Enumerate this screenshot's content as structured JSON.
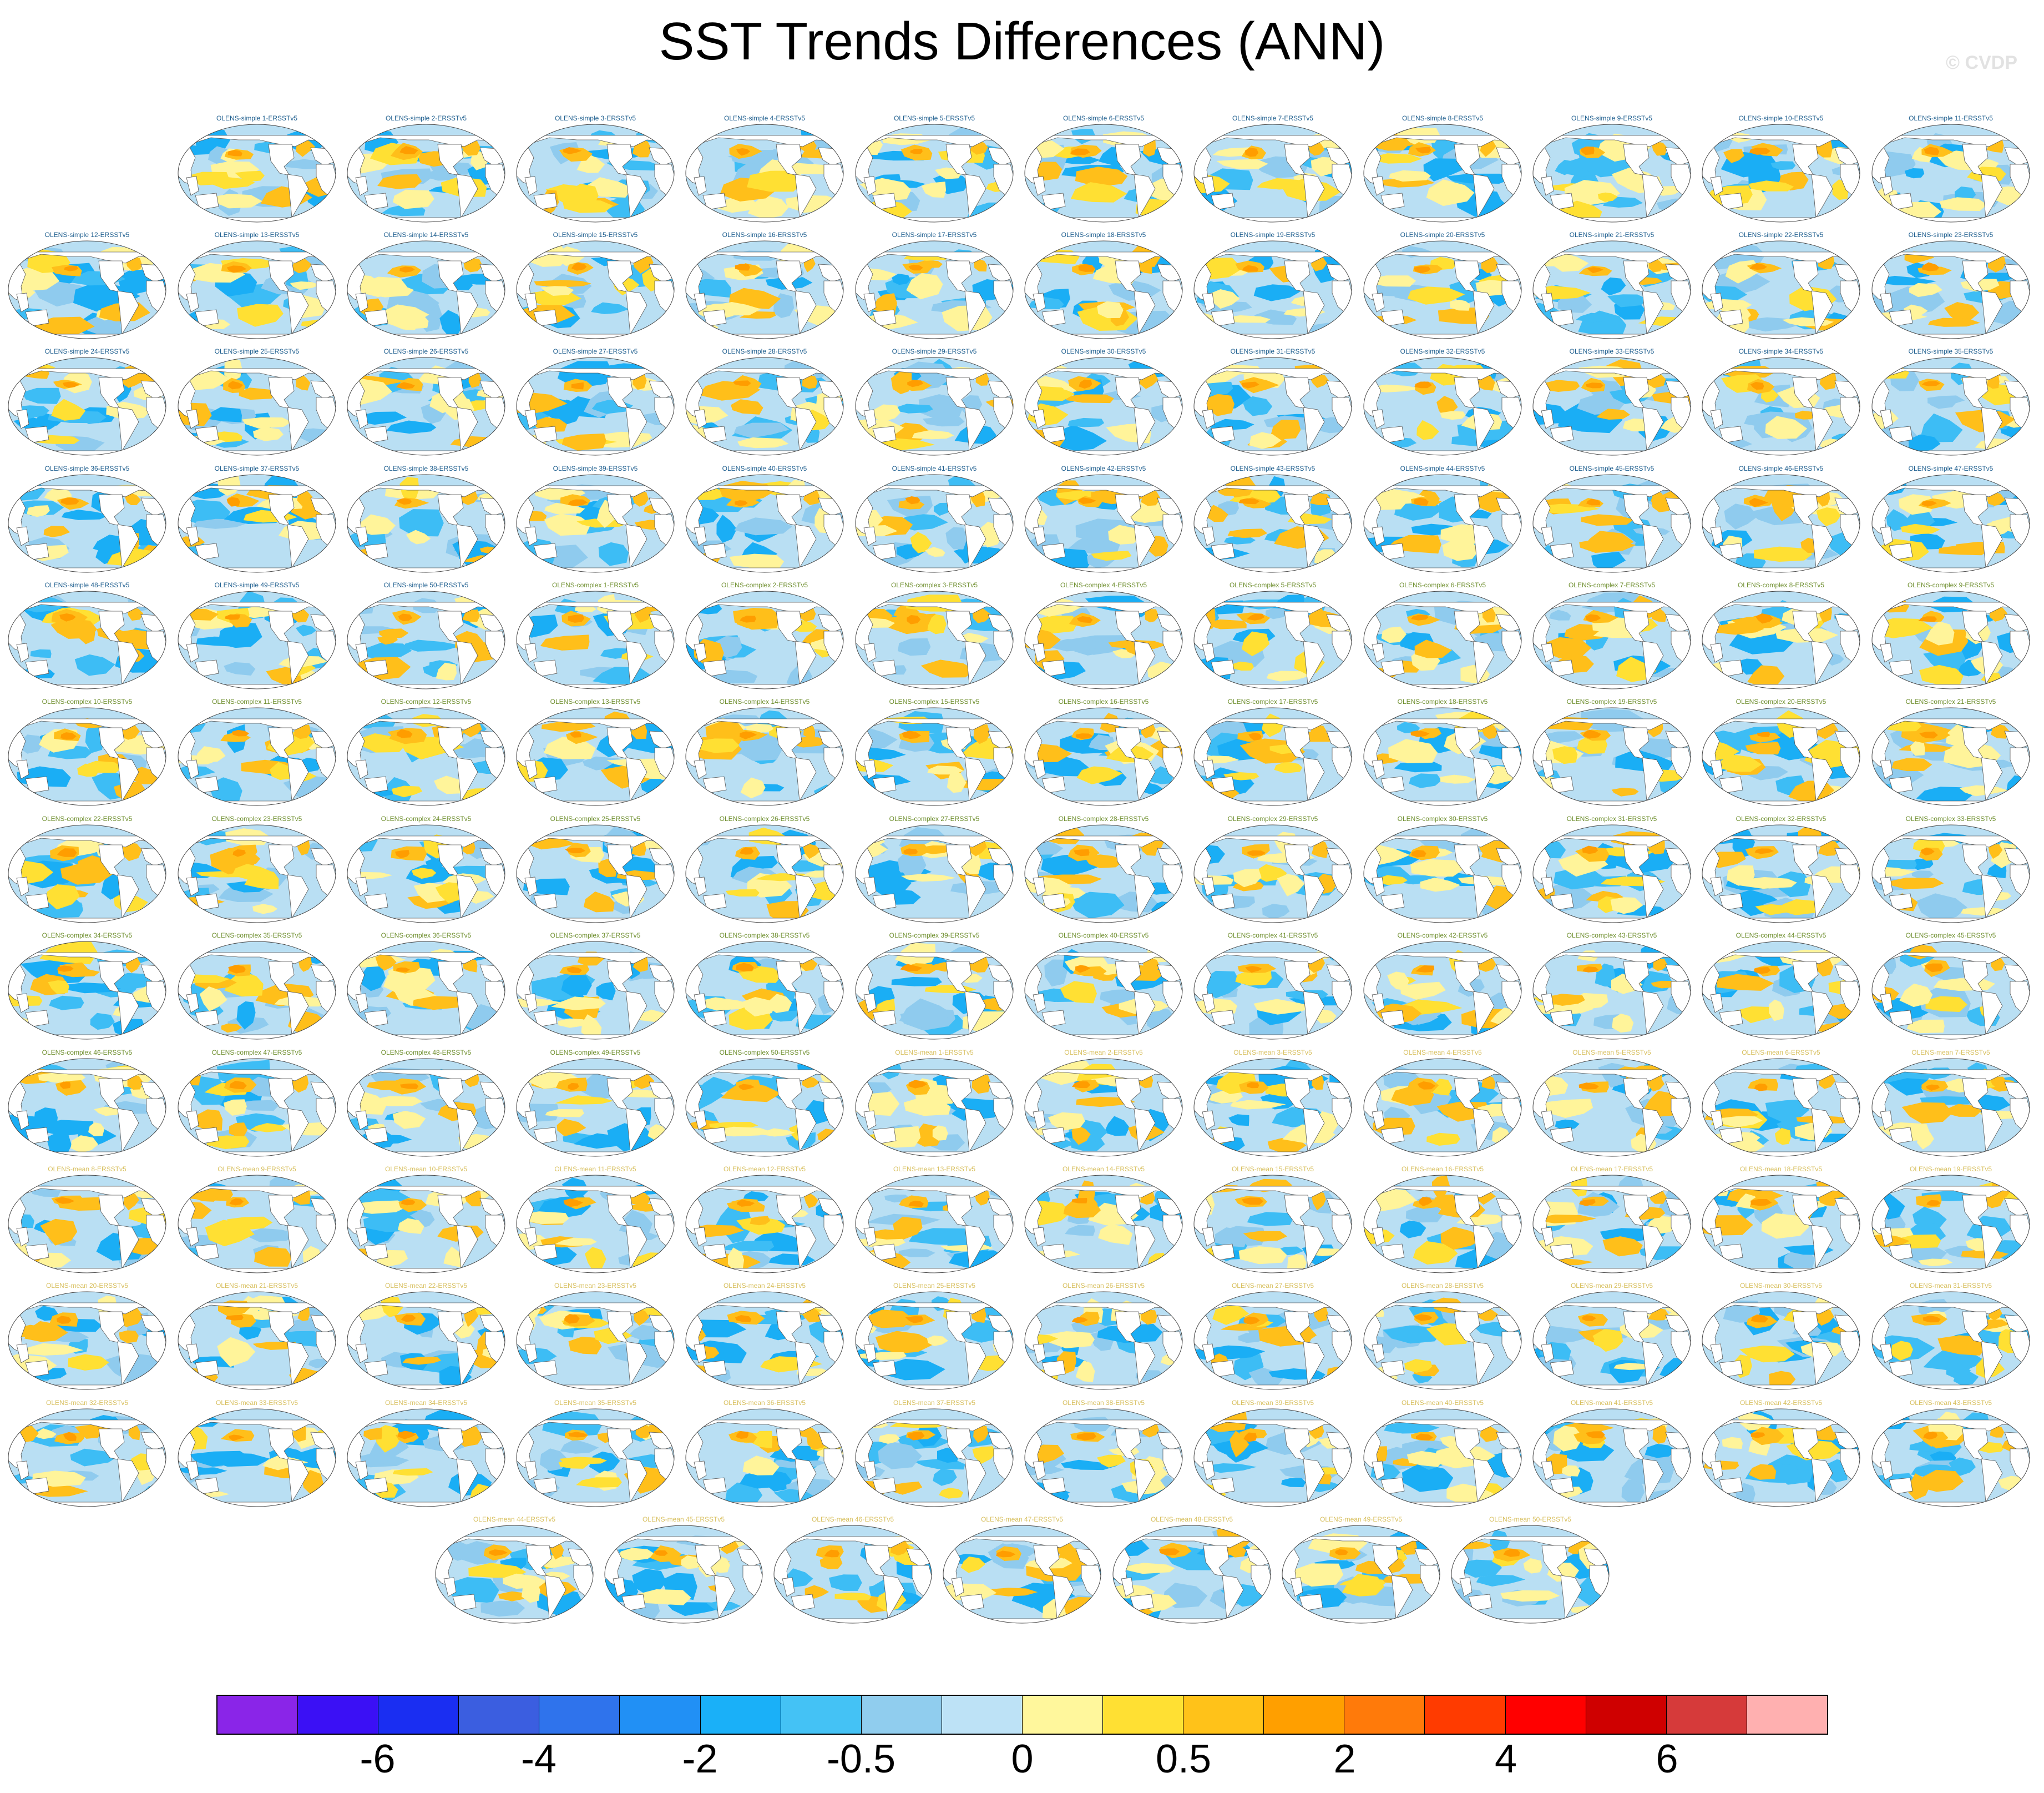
{
  "title": "SST Trends Differences (ANN)",
  "watermark": "© CVDP",
  "title_colors": {
    "simple": "#1f5f8f",
    "complex": "#6f8f2f",
    "mean": "#d8c060"
  },
  "rows": [
    [
      "",
      "OLENS-simple 1-ERSSTv5",
      "OLENS-simple 2-ERSSTv5",
      "OLENS-simple 3-ERSSTv5",
      "OLENS-simple 4-ERSSTv5",
      "OLENS-simple 5-ERSSTv5",
      "OLENS-simple 6-ERSSTv5",
      "OLENS-simple 7-ERSSTv5",
      "OLENS-simple 8-ERSSTv5",
      "OLENS-simple 9-ERSSTv5",
      "OLENS-simple 10-ERSSTv5",
      "OLENS-simple 11-ERSSTv5"
    ],
    [
      "OLENS-simple 12-ERSSTv5",
      "OLENS-simple 13-ERSSTv5",
      "OLENS-simple 14-ERSSTv5",
      "OLENS-simple 15-ERSSTv5",
      "OLENS-simple 16-ERSSTv5",
      "OLENS-simple 17-ERSSTv5",
      "OLENS-simple 18-ERSSTv5",
      "OLENS-simple 19-ERSSTv5",
      "OLENS-simple 20-ERSSTv5",
      "OLENS-simple 21-ERSSTv5",
      "OLENS-simple 22-ERSSTv5",
      "OLENS-simple 23-ERSSTv5"
    ],
    [
      "OLENS-simple 24-ERSSTv5",
      "OLENS-simple 25-ERSSTv5",
      "OLENS-simple 26-ERSSTv5",
      "OLENS-simple 27-ERSSTv5",
      "OLENS-simple 28-ERSSTv5",
      "OLENS-simple 29-ERSSTv5",
      "OLENS-simple 30-ERSSTv5",
      "OLENS-simple 31-ERSSTv5",
      "OLENS-simple 32-ERSSTv5",
      "OLENS-simple 33-ERSSTv5",
      "OLENS-simple 34-ERSSTv5",
      "OLENS-simple 35-ERSSTv5"
    ],
    [
      "OLENS-simple 36-ERSSTv5",
      "OLENS-simple 37-ERSSTv5",
      "OLENS-simple 38-ERSSTv5",
      "OLENS-simple 39-ERSSTv5",
      "OLENS-simple 40-ERSSTv5",
      "OLENS-simple 41-ERSSTv5",
      "OLENS-simple 42-ERSSTv5",
      "OLENS-simple 43-ERSSTv5",
      "OLENS-simple 44-ERSSTv5",
      "OLENS-simple 45-ERSSTv5",
      "OLENS-simple 46-ERSSTv5",
      "OLENS-simple 47-ERSSTv5"
    ],
    [
      "OLENS-simple 48-ERSSTv5",
      "OLENS-simple 49-ERSSTv5",
      "OLENS-simple 50-ERSSTv5",
      "OLENS-complex 1-ERSSTv5",
      "OLENS-complex 2-ERSSTv5",
      "OLENS-complex 3-ERSSTv5",
      "OLENS-complex 4-ERSSTv5",
      "OLENS-complex 5-ERSSTv5",
      "OLENS-complex 6-ERSSTv5",
      "OLENS-complex 7-ERSSTv5",
      "OLENS-complex 8-ERSSTv5",
      "OLENS-complex 9-ERSSTv5"
    ],
    [
      "OLENS-complex 10-ERSSTv5",
      "OLENS-complex 11-ERSSTv5",
      "OLENS-complex 12-ERSSTv5",
      "OLENS-complex 13-ERSSTv5",
      "OLENS-complex 14-ERSSTv5",
      "OLENS-complex 15-ERSSTv5",
      "OLENS-complex 16-ERSSTv5",
      "OLENS-complex 17-ERSSTv5",
      "OLENS-complex 18-ERSSTv5",
      "OLENS-complex 19-ERSSTv5",
      "OLENS-complex 20-ERSSTv5",
      "OLENS-complex 21-ERSSTv5"
    ],
    [
      "OLENS-complex 22-ERSSTv5",
      "OLENS-complex 23-ERSSTv5",
      "OLENS-complex 24-ERSSTv5",
      "OLENS-complex 25-ERSSTv5",
      "OLENS-complex 26-ERSSTv5",
      "OLENS-complex 27-ERSSTv5",
      "OLENS-complex 28-ERSSTv5",
      "OLENS-complex 29-ERSSTv5",
      "OLENS-complex 30-ERSSTv5",
      "OLENS-complex 31-ERSSTv5",
      "OLENS-complex 32-ERSSTv5",
      "OLENS-complex 33-ERSSTv5"
    ],
    [
      "OLENS-complex 34-ERSSTv5",
      "OLENS-complex 35-ERSSTv5",
      "OLENS-complex 36-ERSSTv5",
      "OLENS-complex 37-ERSSTv5",
      "OLENS-complex 38-ERSSTv5",
      "OLENS-complex 39-ERSSTv5",
      "OLENS-complex 40-ERSSTv5",
      "OLENS-complex 41-ERSSTv5",
      "OLENS-complex 42-ERSSTv5",
      "OLENS-complex 43-ERSSTv5",
      "OLENS-complex 44-ERSSTv5",
      "OLENS-complex 45-ERSSTv5"
    ],
    [
      "OLENS-complex 46-ERSSTv5",
      "OLENS-complex 47-ERSSTv5",
      "OLENS-complex 48-ERSSTv5",
      "OLENS-complex 49-ERSSTv5",
      "OLENS-complex 50-ERSSTv5",
      "OLENS-mean 1-ERSSTv5",
      "OLENS-mean 2-ERSSTv5",
      "OLENS-mean 3-ERSSTv5",
      "OLENS-mean 4-ERSSTv5",
      "OLENS-mean 5-ERSSTv5",
      "OLENS-mean 6-ERSSTv5",
      "OLENS-mean 7-ERSSTv5"
    ],
    [
      "OLENS-mean 8-ERSSTv5",
      "OLENS-mean 9-ERSSTv5",
      "OLENS-mean 10-ERSSTv5",
      "OLENS-mean 11-ERSSTv5",
      "OLENS-mean 12-ERSSTv5",
      "OLENS-mean 13-ERSSTv5",
      "OLENS-mean 14-ERSSTv5",
      "OLENS-mean 15-ERSSTv5",
      "OLENS-mean 16-ERSSTv5",
      "OLENS-mean 17-ERSSTv5",
      "OLENS-mean 18-ERSSTv5",
      "OLENS-mean 19-ERSSTv5"
    ],
    [
      "OLENS-mean 20-ERSSTv5",
      "OLENS-mean 21-ERSSTv5",
      "OLENS-mean 22-ERSSTv5",
      "OLENS-mean 23-ERSSTv5",
      "OLENS-mean 24-ERSSTv5",
      "OLENS-mean 25-ERSSTv5",
      "OLENS-mean 26-ERSSTv5",
      "OLENS-mean 27-ERSSTv5",
      "OLENS-mean 28-ERSSTv5",
      "OLENS-mean 29-ERSSTv5",
      "OLENS-mean 30-ERSSTv5",
      "OLENS-mean 31-ERSSTv5"
    ],
    [
      "OLENS-mean 32-ERSSTv5",
      "OLENS-mean 33-ERSSTv5",
      "OLENS-mean 34-ERSSTv5",
      "OLENS-mean 35-ERSSTv5",
      "OLENS-mean 36-ERSSTv5",
      "OLENS-mean 37-ERSSTv5",
      "OLENS-mean 38-ERSSTv5",
      "OLENS-mean 39-ERSSTv5",
      "OLENS-mean 40-ERSSTv5",
      "OLENS-mean 41-ERSSTv5",
      "OLENS-mean 42-ERSSTv5",
      "OLENS-mean 43-ERSSTv5"
    ],
    [
      "OLENS-mean 44-ERSSTv5",
      "OLENS-mean 45-ERSSTv5",
      "OLENS-mean 46-ERSSTv5",
      "OLENS-mean 47-ERSSTv5",
      "OLENS-mean 48-ERSSTv5",
      "OLENS-mean 49-ERSSTv5",
      "OLENS-mean 50-ERSSTv5"
    ]
  ],
  "map_colors": {
    "background": "#b9dff3",
    "land": "#ffffff",
    "coast": "#555555",
    "frame": "#444444",
    "pos_weak": "#fff49a",
    "pos_mid": "#ffe033",
    "pos_strong": "#ffbf1a",
    "pos_max": "#ff9d00",
    "neg_weak": "#8fcbee",
    "neg_mid": "#3dbdf5",
    "neg_strong": "#1aaef5"
  },
  "colorbar": {
    "colors": [
      "#8a25e8",
      "#3b10f5",
      "#1a2ef2",
      "#3b5ee0",
      "#2f73ec",
      "#2190f5",
      "#1ab0f8",
      "#44c2f5",
      "#90cdee",
      "#bde2f6",
      "#fff79c",
      "#ffe033",
      "#ffc219",
      "#ff9f00",
      "#ff7a0a",
      "#ff3b00",
      "#ff0000",
      "#cf0000",
      "#d63a3a",
      "#ffb0b0"
    ],
    "labels": [
      "-6",
      "-4",
      "-2",
      "-0.5",
      "0",
      "0.5",
      "2",
      "4",
      "6"
    ]
  }
}
